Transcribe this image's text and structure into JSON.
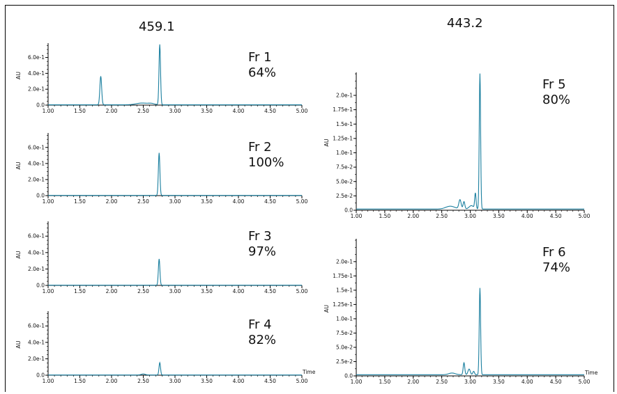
{
  "columns": [
    {
      "title": "459.1"
    },
    {
      "title": "443.2"
    }
  ],
  "accent_color": "#1a7f9f",
  "chart_data": [
    {
      "type": "line",
      "label": "Fr 1",
      "percent": "64%",
      "ylabel": "AU",
      "xlabel": "",
      "xlim": [
        1.0,
        5.0
      ],
      "ylim": [
        0,
        0.78
      ],
      "xticks": [
        "1.00",
        "1.50",
        "2.00",
        "2.50",
        "3.00",
        "3.50",
        "4.00",
        "4.50",
        "5.00"
      ],
      "yticks": [
        {
          "v": 0.0,
          "t": "0.0"
        },
        {
          "v": 0.2,
          "t": "2.0e-1"
        },
        {
          "v": 0.4,
          "t": "4.0e-1"
        },
        {
          "v": 0.6,
          "t": "6.0e-1"
        }
      ],
      "peaks": [
        [
          1.83,
          0.36,
          0.014
        ],
        [
          2.48,
          0.022,
          0.09
        ],
        [
          2.63,
          0.014,
          0.05
        ],
        [
          2.76,
          0.76,
          0.012
        ]
      ],
      "baseline": 0.004
    },
    {
      "type": "line",
      "label": "Fr 2",
      "percent": "100%",
      "ylabel": "AU",
      "xlabel": "",
      "xlim": [
        1.0,
        5.0
      ],
      "ylim": [
        0,
        0.78
      ],
      "xticks": [
        "1.00",
        "1.50",
        "2.00",
        "2.50",
        "3.00",
        "3.50",
        "4.00",
        "4.50",
        "5.00"
      ],
      "yticks": [
        {
          "v": 0.0,
          "t": "0.0"
        },
        {
          "v": 0.2,
          "t": "2.0e-1"
        },
        {
          "v": 0.4,
          "t": "4.0e-1"
        },
        {
          "v": 0.6,
          "t": "6.0e-1"
        }
      ],
      "peaks": [
        [
          2.75,
          0.53,
          0.012
        ]
      ],
      "baseline": 0.003
    },
    {
      "type": "line",
      "label": "Fr 3",
      "percent": "97%",
      "ylabel": "AU",
      "xlabel": "",
      "xlim": [
        1.0,
        5.0
      ],
      "ylim": [
        0,
        0.78
      ],
      "xticks": [
        "1.00",
        "1.50",
        "2.00",
        "2.50",
        "3.00",
        "3.50",
        "4.00",
        "4.50",
        "5.00"
      ],
      "yticks": [
        {
          "v": 0.0,
          "t": "0.0"
        },
        {
          "v": 0.2,
          "t": "2.0e-1"
        },
        {
          "v": 0.4,
          "t": "4.0e-1"
        },
        {
          "v": 0.6,
          "t": "6.0e-1"
        }
      ],
      "peaks": [
        [
          2.75,
          0.32,
          0.012
        ]
      ],
      "baseline": 0.003
    },
    {
      "type": "line",
      "label": "Fr 4",
      "percent": "82%",
      "ylabel": "AU",
      "xlabel": "Time",
      "xlim": [
        1.0,
        5.0
      ],
      "ylim": [
        0,
        0.78
      ],
      "xticks": [
        "1.00",
        "1.50",
        "2.00",
        "2.50",
        "3.00",
        "3.50",
        "4.00",
        "4.50",
        "5.00"
      ],
      "yticks": [
        {
          "v": 0.0,
          "t": "0.0"
        },
        {
          "v": 0.2,
          "t": "2.0e-1"
        },
        {
          "v": 0.4,
          "t": "4.0e-1"
        },
        {
          "v": 0.6,
          "t": "6.0e-1"
        }
      ],
      "peaks": [
        [
          2.5,
          0.012,
          0.03
        ],
        [
          2.76,
          0.15,
          0.012
        ]
      ],
      "baseline": 0.003
    },
    {
      "type": "line",
      "label": "Fr 5",
      "percent": "80%",
      "ylabel": "AU",
      "xlabel": "",
      "xlim": [
        1.0,
        5.0
      ],
      "ylim": [
        0,
        0.24
      ],
      "xticks": [
        "1.00",
        "1.50",
        "2.00",
        "2.50",
        "3.00",
        "3.50",
        "4.00",
        "4.50",
        "5.00"
      ],
      "yticks": [
        {
          "v": 0.0,
          "t": "0.0"
        },
        {
          "v": 0.025,
          "t": "2.5e-2"
        },
        {
          "v": 0.05,
          "t": "5.0e-2"
        },
        {
          "v": 0.075,
          "t": "7.5e-2"
        },
        {
          "v": 0.1,
          "t": "1.0e-1"
        },
        {
          "v": 0.125,
          "t": "1.25e-1"
        },
        {
          "v": 0.15,
          "t": "1.5e-1"
        },
        {
          "v": 0.175,
          "t": "1.75e-1"
        },
        {
          "v": 0.2,
          "t": "2.0e-1"
        }
      ],
      "peaks": [
        [
          2.65,
          0.005,
          0.08
        ],
        [
          2.82,
          0.016,
          0.02
        ],
        [
          2.89,
          0.013,
          0.015
        ],
        [
          3.02,
          0.006,
          0.04
        ],
        [
          3.09,
          0.027,
          0.012
        ],
        [
          3.17,
          0.236,
          0.012
        ]
      ],
      "baseline": 0.002
    },
    {
      "type": "line",
      "label": "Fr 6",
      "percent": "74%",
      "ylabel": "AU",
      "xlabel": "Time",
      "xlim": [
        1.0,
        5.0
      ],
      "ylim": [
        0,
        0.24
      ],
      "xticks": [
        "1.00",
        "1.50",
        "2.00",
        "2.50",
        "3.00",
        "3.50",
        "4.00",
        "4.50",
        "5.00"
      ],
      "yticks": [
        {
          "v": 0.0,
          "t": "0.0"
        },
        {
          "v": 0.025,
          "t": "2.5e-2"
        },
        {
          "v": 0.05,
          "t": "5.0e-2"
        },
        {
          "v": 0.075,
          "t": "7.5e-2"
        },
        {
          "v": 0.1,
          "t": "1.0e-1"
        },
        {
          "v": 0.125,
          "t": "1.25e-1"
        },
        {
          "v": 0.15,
          "t": "1.5e-1"
        },
        {
          "v": 0.175,
          "t": "1.75e-1"
        },
        {
          "v": 0.2,
          "t": "2.0e-1"
        }
      ],
      "peaks": [
        [
          2.68,
          0.003,
          0.06
        ],
        [
          2.89,
          0.021,
          0.014
        ],
        [
          2.98,
          0.01,
          0.02
        ],
        [
          3.06,
          0.006,
          0.015
        ],
        [
          3.17,
          0.152,
          0.012
        ]
      ],
      "baseline": 0.002
    }
  ]
}
